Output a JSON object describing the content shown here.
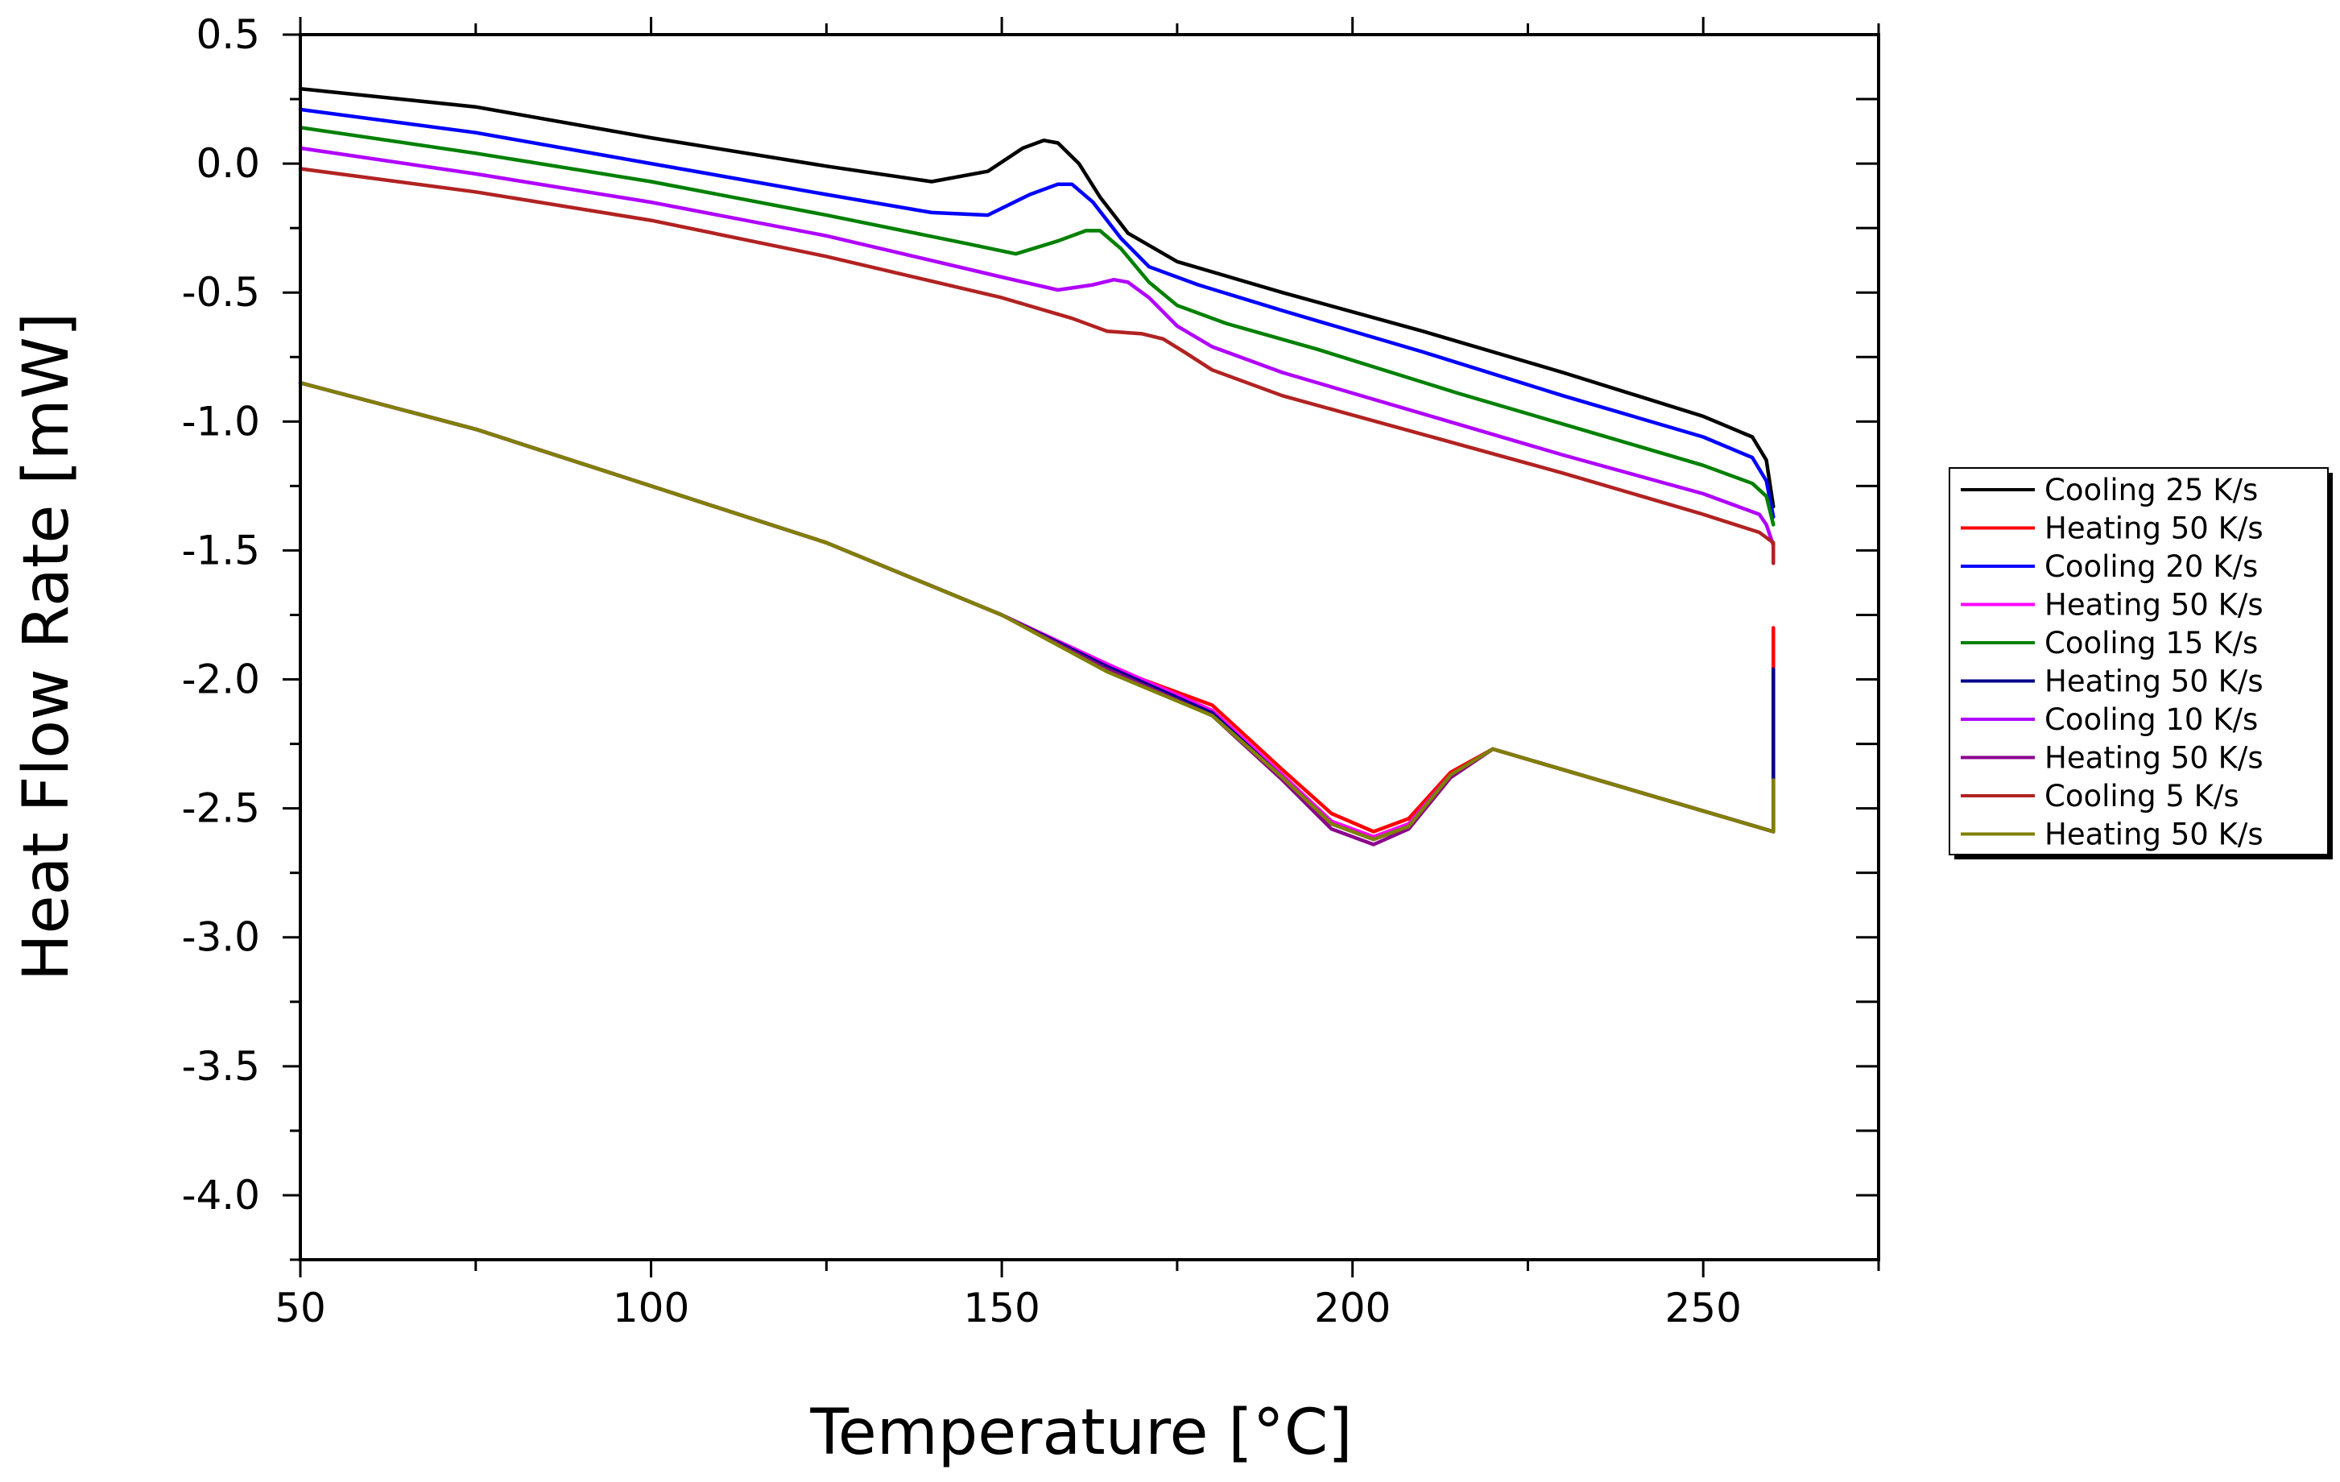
{
  "chart_data": {
    "type": "line",
    "title": "",
    "xlabel": "Temperature [°C]",
    "ylabel": "Heat Flow Rate [mW]",
    "xlim": [
      50,
      275
    ],
    "ylim": [
      -4.25,
      0.5
    ],
    "x_ticks": [
      50,
      100,
      150,
      200,
      250
    ],
    "x_tick_labels": [
      "50",
      "100",
      "150",
      "200",
      "250"
    ],
    "y_ticks": [
      0.5,
      0.0,
      -0.5,
      -1.0,
      -1.5,
      -2.0,
      -2.5,
      -3.0,
      -3.5,
      -4.0
    ],
    "y_tick_labels": [
      "0.5",
      "0.0",
      "-0.5",
      "-1.0",
      "-1.5",
      "-2.0",
      "-2.5",
      "-3.0",
      "-3.5",
      "-4.0"
    ],
    "grid": false,
    "legend_position": "right-outside",
    "series": [
      {
        "name": "Cooling 25 K/s",
        "color": "#000000",
        "x": [
          50,
          75,
          100,
          125,
          140,
          148,
          153,
          156,
          158,
          161,
          164,
          168,
          175,
          190,
          210,
          230,
          250,
          257,
          259,
          260
        ],
        "y": [
          0.29,
          0.22,
          0.1,
          -0.01,
          -0.07,
          -0.03,
          0.06,
          0.09,
          0.08,
          0.0,
          -0.13,
          -0.27,
          -0.38,
          -0.5,
          -0.65,
          -0.81,
          -0.98,
          -1.06,
          -1.15,
          -1.33
        ]
      },
      {
        "name": "Heating 50 K/s",
        "color": "#ff0000",
        "x": [
          50,
          75,
          100,
          125,
          150,
          165,
          180,
          190,
          197,
          203,
          208,
          214,
          220,
          240,
          260,
          260
        ],
        "y": [
          -0.85,
          -1.03,
          -1.25,
          -1.47,
          -1.75,
          -1.95,
          -2.1,
          -2.35,
          -2.52,
          -2.59,
          -2.54,
          -2.36,
          -2.27,
          -2.43,
          -2.59,
          -1.8
        ]
      },
      {
        "name": "Cooling 20 K/s",
        "color": "#0000ff",
        "x": [
          50,
          75,
          100,
          125,
          140,
          148,
          154,
          158,
          160,
          163,
          167,
          171,
          178,
          190,
          210,
          230,
          250,
          257,
          259,
          260
        ],
        "y": [
          0.21,
          0.12,
          0.0,
          -0.12,
          -0.19,
          -0.2,
          -0.12,
          -0.08,
          -0.08,
          -0.15,
          -0.29,
          -0.4,
          -0.47,
          -0.57,
          -0.73,
          -0.9,
          -1.06,
          -1.14,
          -1.23,
          -1.37
        ]
      },
      {
        "name": "Heating 50 K/s",
        "color": "#ff00ff",
        "x": [
          50,
          75,
          100,
          125,
          150,
          165,
          180,
          190,
          197,
          203,
          208,
          214,
          220,
          240,
          260,
          260
        ],
        "y": [
          -0.85,
          -1.03,
          -1.25,
          -1.47,
          -1.75,
          -1.94,
          -2.12,
          -2.37,
          -2.55,
          -2.61,
          -2.56,
          -2.37,
          -2.27,
          -2.43,
          -2.59,
          -2.0
        ]
      },
      {
        "name": "Cooling 15 K/s",
        "color": "#008000",
        "x": [
          50,
          75,
          100,
          125,
          145,
          152,
          158,
          162,
          164,
          167,
          171,
          175,
          182,
          195,
          215,
          235,
          250,
          257,
          259,
          260
        ],
        "y": [
          0.14,
          0.04,
          -0.07,
          -0.2,
          -0.31,
          -0.35,
          -0.3,
          -0.26,
          -0.26,
          -0.33,
          -0.46,
          -0.55,
          -0.62,
          -0.72,
          -0.89,
          -1.05,
          -1.17,
          -1.24,
          -1.29,
          -1.4
        ]
      },
      {
        "name": "Heating 50 K/s",
        "color": "#00008b",
        "x": [
          50,
          75,
          100,
          125,
          150,
          165,
          180,
          190,
          197,
          203,
          208,
          214,
          220,
          240,
          260,
          260
        ],
        "y": [
          -0.85,
          -1.03,
          -1.25,
          -1.47,
          -1.75,
          -1.95,
          -2.13,
          -2.38,
          -2.56,
          -2.62,
          -2.57,
          -2.37,
          -2.27,
          -2.43,
          -2.59,
          -1.96
        ]
      },
      {
        "name": "Cooling 10 K/s",
        "color": "#b000ff",
        "x": [
          50,
          75,
          100,
          125,
          150,
          158,
          163,
          166,
          168,
          171,
          175,
          180,
          190,
          210,
          230,
          250,
          258,
          259,
          260
        ],
        "y": [
          0.06,
          -0.04,
          -0.15,
          -0.28,
          -0.44,
          -0.49,
          -0.47,
          -0.45,
          -0.46,
          -0.52,
          -0.63,
          -0.71,
          -0.81,
          -0.97,
          -1.13,
          -1.28,
          -1.36,
          -1.4,
          -1.48
        ]
      },
      {
        "name": "Heating 50 K/s",
        "color": "#8b008b",
        "x": [
          50,
          75,
          100,
          125,
          150,
          165,
          180,
          190,
          197,
          203,
          208,
          214,
          220,
          240,
          260,
          260
        ],
        "y": [
          -0.85,
          -1.03,
          -1.25,
          -1.47,
          -1.75,
          -1.96,
          -2.14,
          -2.39,
          -2.58,
          -2.64,
          -2.58,
          -2.38,
          -2.27,
          -2.43,
          -2.59,
          -2.4
        ]
      },
      {
        "name": "Cooling 5 K/s",
        "color": "#b22222",
        "x": [
          50,
          75,
          100,
          125,
          150,
          160,
          165,
          170,
          173,
          176,
          180,
          190,
          210,
          230,
          250,
          258,
          260,
          260
        ],
        "y": [
          -0.02,
          -0.11,
          -0.22,
          -0.36,
          -0.52,
          -0.6,
          -0.65,
          -0.66,
          -0.68,
          -0.73,
          -0.8,
          -0.9,
          -1.05,
          -1.2,
          -1.36,
          -1.43,
          -1.47,
          -1.55
        ]
      },
      {
        "name": "Heating 50 K/s",
        "color": "#808000",
        "x": [
          50,
          75,
          100,
          125,
          150,
          165,
          180,
          190,
          197,
          203,
          208,
          214,
          220,
          240,
          260,
          260
        ],
        "y": [
          -0.85,
          -1.03,
          -1.25,
          -1.47,
          -1.75,
          -1.97,
          -2.14,
          -2.38,
          -2.56,
          -2.62,
          -2.57,
          -2.37,
          -2.27,
          -2.43,
          -2.59,
          -2.39
        ]
      }
    ]
  }
}
